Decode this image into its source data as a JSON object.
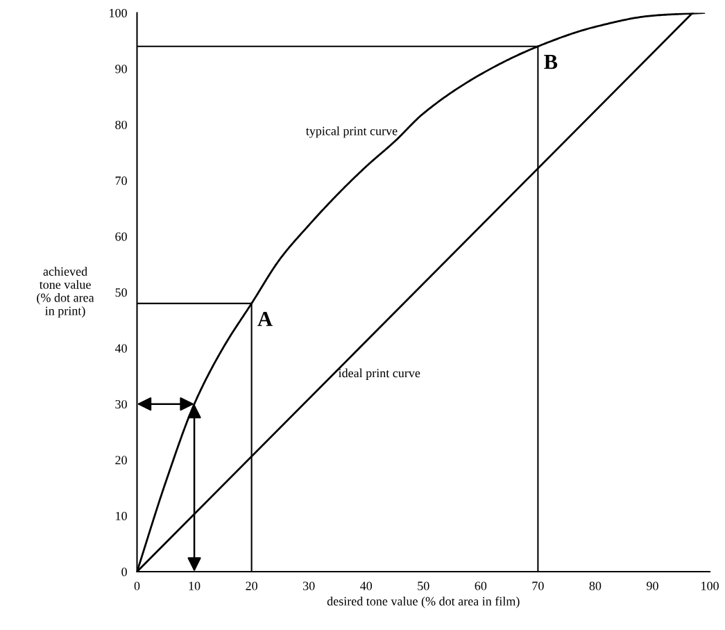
{
  "chart_data": {
    "type": "line",
    "xlabel": "desired tone value (% dot area in film)",
    "ylabel": "achieved\ntone value\n(% dot area\nin print)",
    "xlim": [
      0,
      100
    ],
    "ylim": [
      0,
      100
    ],
    "xticks": [
      0,
      10,
      20,
      30,
      40,
      50,
      60,
      70,
      80,
      90,
      100
    ],
    "yticks": [
      0,
      10,
      20,
      30,
      40,
      50,
      60,
      70,
      80,
      90,
      100
    ],
    "grid": false,
    "legend": false,
    "marker": "none",
    "line_style": "solid",
    "series": [
      {
        "name": "typical print curve",
        "color": "#000000",
        "x": [
          0,
          5,
          10,
          15,
          20,
          25,
          30,
          35,
          40,
          45,
          50,
          60,
          70,
          80,
          90,
          99
        ],
        "values": [
          0,
          16,
          30,
          40,
          48,
          56,
          62,
          67.5,
          72.5,
          77,
          82,
          89,
          94,
          97.5,
          99.5,
          100
        ]
      },
      {
        "name": "ideal print curve",
        "color": "#000000",
        "x": [
          0,
          97
        ],
        "values": [
          0,
          100
        ]
      }
    ],
    "ref_lines": [
      {
        "axis": "x",
        "value": 20,
        "color": "#000000"
      },
      {
        "axis": "y",
        "value": 48,
        "color": "#000000"
      },
      {
        "axis": "x",
        "value": 70,
        "color": "#000000"
      },
      {
        "axis": "y",
        "value": 94,
        "color": "#000000"
      }
    ],
    "annotations": [
      {
        "text": "A",
        "x": 20,
        "y": 48
      },
      {
        "text": "B",
        "x": 70,
        "y": 94
      }
    ]
  }
}
